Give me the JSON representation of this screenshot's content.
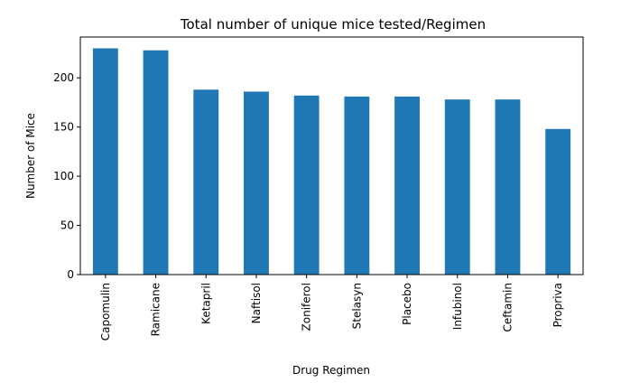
{
  "chart_data": {
    "type": "bar",
    "title": "Total number of unique mice tested/Regimen",
    "xlabel": "Drug Regimen",
    "ylabel": "Number of Mice",
    "categories": [
      "Capomulin",
      "Ramicane",
      "Ketapril",
      "Naftisol",
      "Zoniferol",
      "Stelasyn",
      "Placebo",
      "Infubinol",
      "Ceftamin",
      "Propriva"
    ],
    "values": [
      230,
      228,
      188,
      186,
      182,
      181,
      181,
      178,
      178,
      148
    ],
    "yticks": [
      0,
      50,
      100,
      150,
      200
    ],
    "ylim": [
      0,
      241.5
    ],
    "bar_color": "#1f77b4",
    "grid": false,
    "legend": "none"
  }
}
